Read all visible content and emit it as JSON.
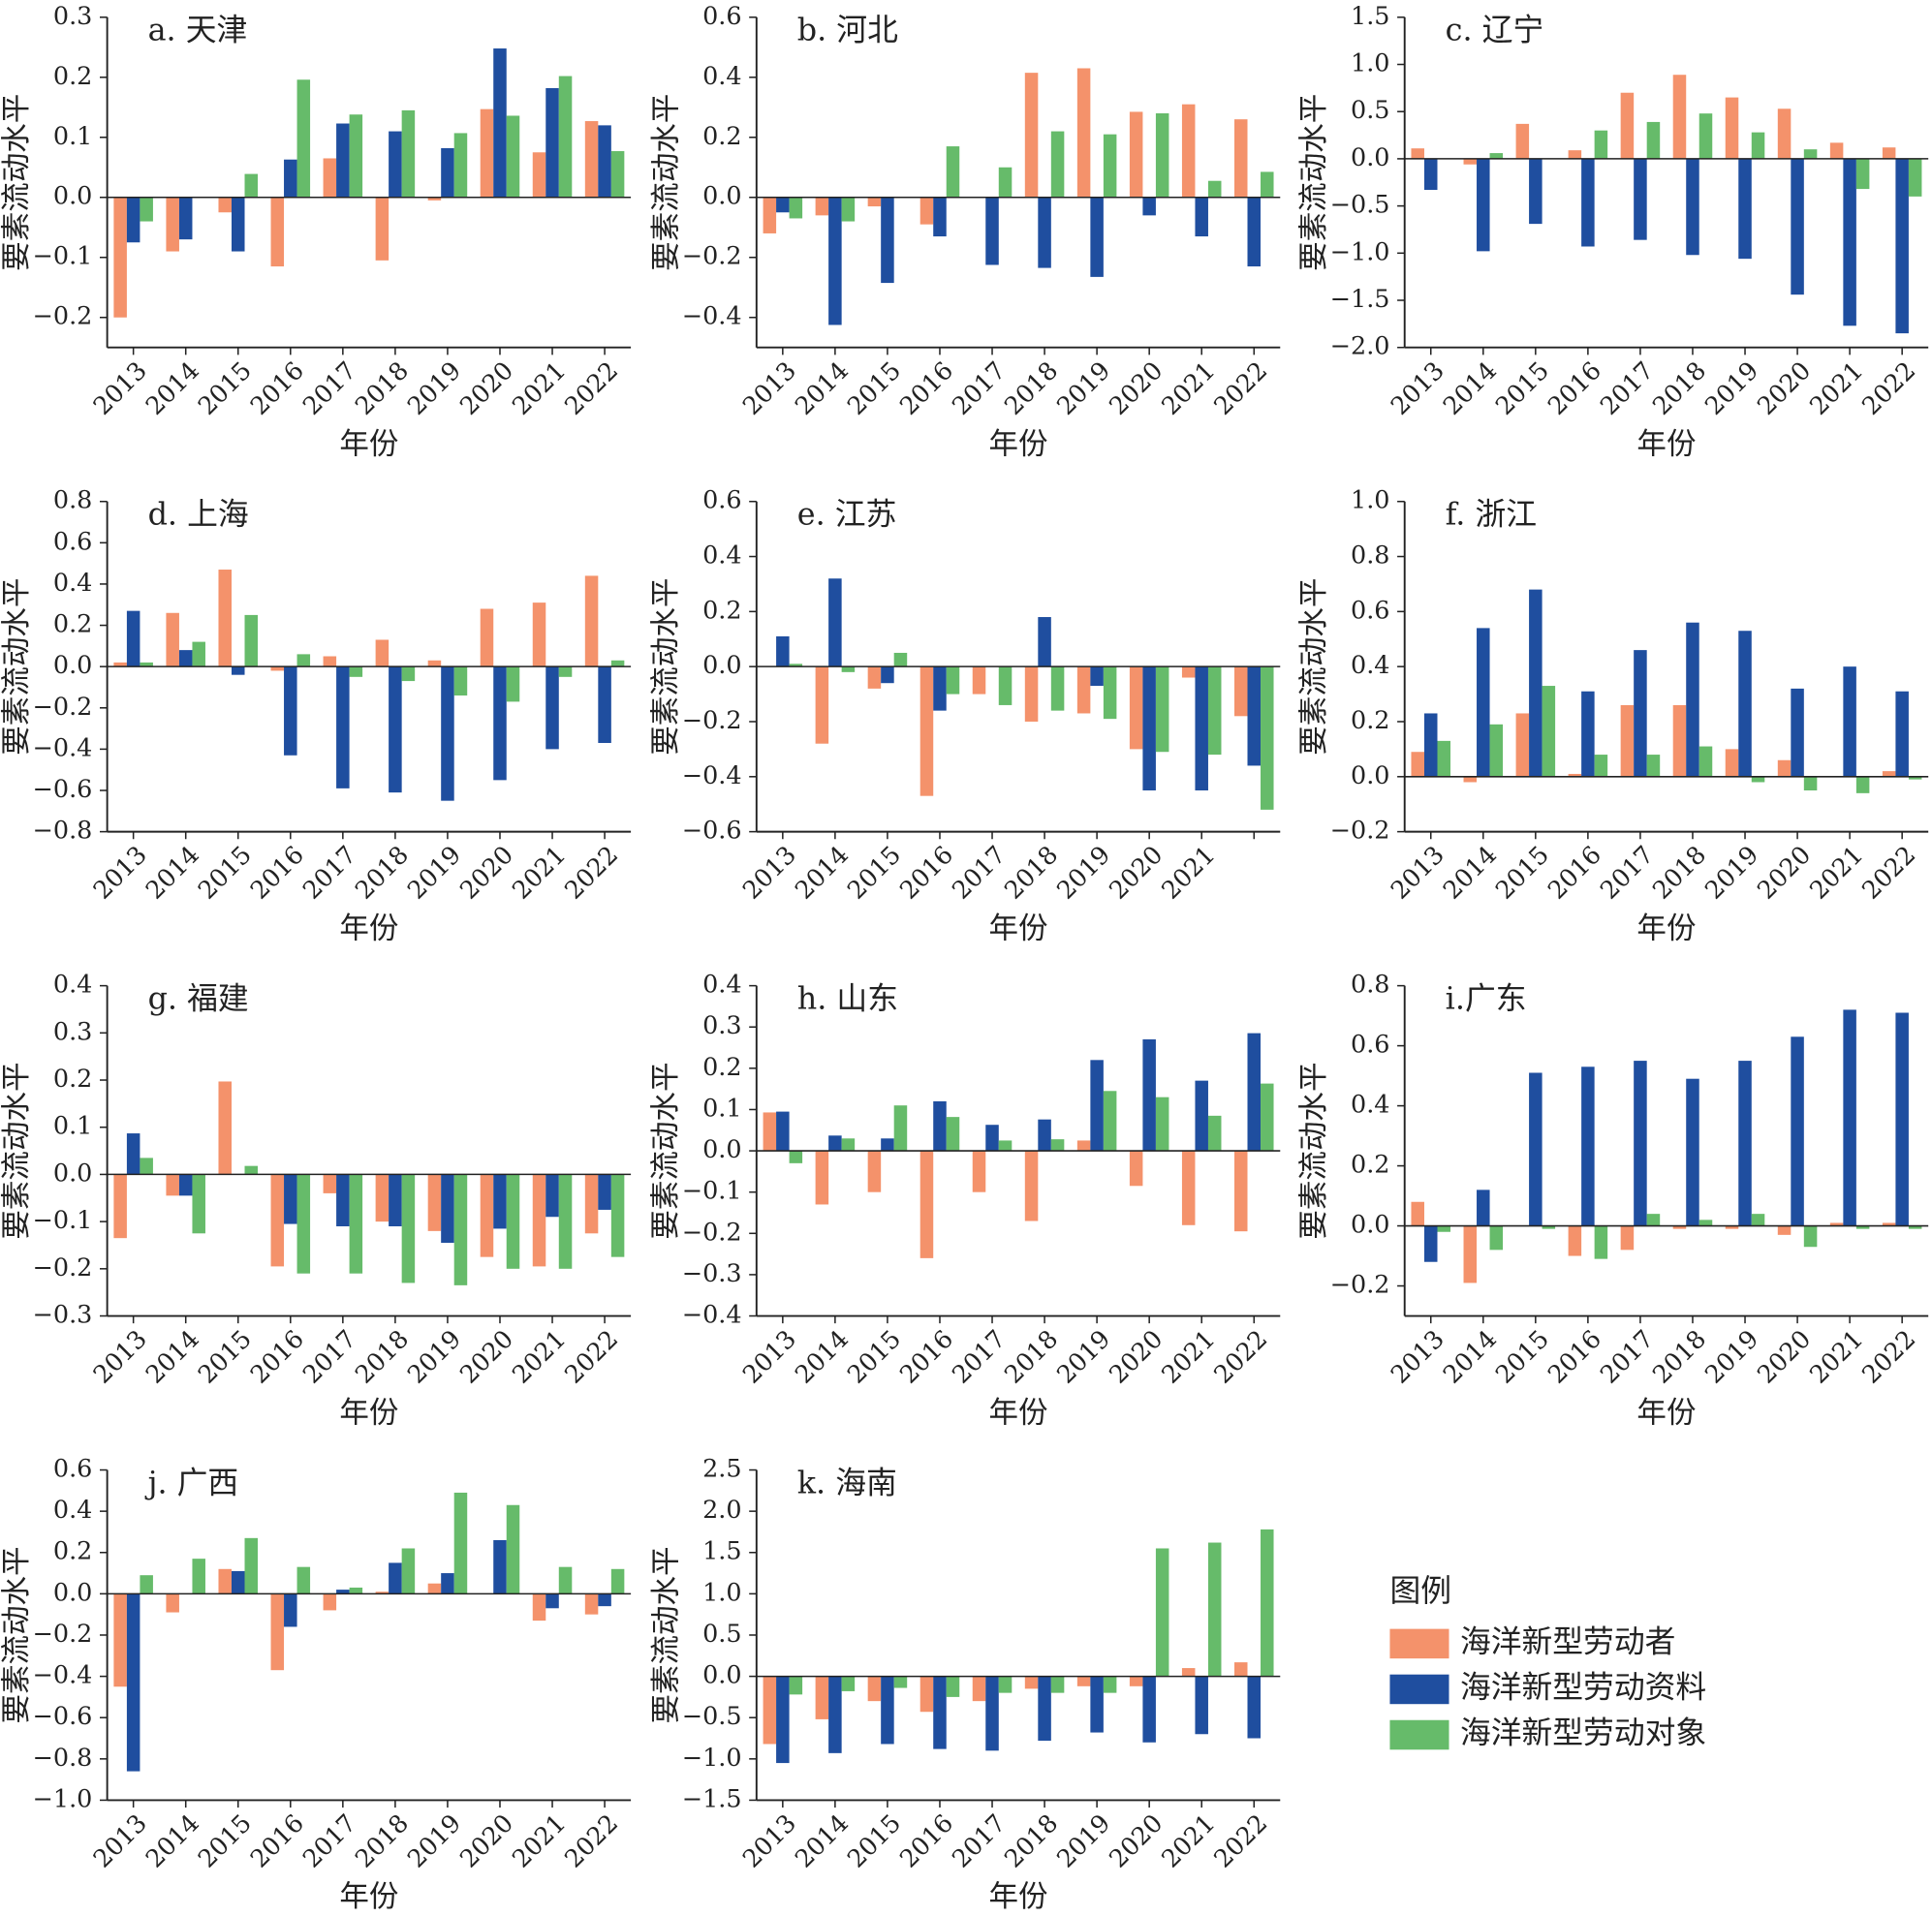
{
  "legend": {
    "title": "图例"
  },
  "chart_data": [
    {
      "type": "bar",
      "title": "a. 天津",
      "xlabel": "年份",
      "ylabel": "要素流动水平",
      "categories": [
        "2013",
        "2014",
        "2015",
        "2016",
        "2017",
        "2018",
        "2019",
        "2020",
        "2021",
        "2022"
      ],
      "series": [
        {
          "name": "海洋新型劳动者",
          "color": "#f4926b",
          "values": [
            -0.2,
            -0.09,
            -0.025,
            -0.115,
            0.065,
            -0.105,
            -0.005,
            0.147,
            0.075,
            0.127
          ]
        },
        {
          "name": "海洋新型劳动资料",
          "color": "#1f4e9f",
          "values": [
            -0.075,
            -0.07,
            -0.09,
            0.063,
            0.123,
            0.11,
            0.082,
            0.248,
            0.182,
            0.12
          ]
        },
        {
          "name": "海洋新型劳动对象",
          "color": "#66bb6a",
          "values": [
            -0.04,
            0,
            0.039,
            0.196,
            0.138,
            0.145,
            0.107,
            0.136,
            0.202,
            0.077
          ]
        }
      ],
      "ylim": [
        -0.25,
        0.3
      ],
      "yticks": [
        {
          "value": -0.2,
          "label": "−0.2"
        },
        {
          "value": -0.1,
          "label": "−0.1"
        },
        {
          "value": 0,
          "label": "0.0"
        },
        0.1,
        0.2,
        0.3
      ]
    },
    {
      "type": "bar",
      "title": "b. 河北",
      "xlabel": "年份",
      "ylabel": "要素流动水平",
      "categories": [
        "2013",
        "2014",
        "2015",
        "2016",
        "2017",
        "2018",
        "2019",
        "2020",
        "2021",
        "2022"
      ],
      "series": [
        {
          "name": "海洋新型劳动者",
          "color": "#f4926b",
          "values": [
            -0.12,
            -0.06,
            -0.03,
            -0.09,
            0,
            0.415,
            0.43,
            0.285,
            0.31,
            0.26
          ]
        },
        {
          "name": "海洋新型劳动资料",
          "color": "#1f4e9f",
          "values": [
            -0.05,
            -0.425,
            -0.285,
            -0.13,
            -0.225,
            -0.235,
            -0.265,
            -0.06,
            -0.13,
            -0.23
          ]
        },
        {
          "name": "海洋新型劳动对象",
          "color": "#66bb6a",
          "values": [
            -0.07,
            -0.08,
            0,
            0.17,
            0.1,
            0.22,
            0.21,
            0.28,
            0.055,
            0.085
          ]
        }
      ],
      "ylim": [
        -0.5,
        0.6
      ],
      "yticks": [
        {
          "value": -0.4,
          "label": "−0.4"
        },
        {
          "value": -0.2,
          "label": "−0.2"
        },
        {
          "value": 0,
          "label": "0.0"
        },
        0.2,
        0.4,
        0.6
      ]
    },
    {
      "type": "bar",
      "title": "c. 辽宁",
      "xlabel": "年份",
      "ylabel": "要素流动水平",
      "categories": [
        "2013",
        "2014",
        "2015",
        "2016",
        "2017",
        "2018",
        "2019",
        "2020",
        "2021",
        "2022"
      ],
      "series": [
        {
          "name": "海洋新型劳动者",
          "color": "#f4926b",
          "values": [
            0.11,
            -0.06,
            0.37,
            0.09,
            0.7,
            0.89,
            0.65,
            0.53,
            0.17,
            0.12
          ]
        },
        {
          "name": "海洋新型劳动资料",
          "color": "#1f4e9f",
          "values": [
            -0.33,
            -0.98,
            -0.69,
            -0.93,
            -0.86,
            -1.02,
            -1.06,
            -1.44,
            -1.77,
            -1.85
          ]
        },
        {
          "name": "海洋新型劳动对象",
          "color": "#66bb6a",
          "values": [
            0,
            0.06,
            0,
            0.3,
            0.39,
            0.48,
            0.28,
            0.1,
            -0.32,
            -0.4
          ]
        }
      ],
      "ylim": [
        -2.0,
        1.5
      ],
      "yticks": [
        {
          "value": -2,
          "label": "−2.0"
        },
        {
          "value": -1.5,
          "label": "−1.5"
        },
        {
          "value": -1,
          "label": "−1.0"
        },
        {
          "value": -0.5,
          "label": "−0.5"
        },
        {
          "value": 0,
          "label": "0.0"
        },
        0.5,
        {
          "value": 1,
          "label": "1.0"
        },
        1.5
      ]
    },
    {
      "type": "bar",
      "title": "d. 上海",
      "xlabel": "年份",
      "ylabel": "要素流动水平",
      "categories": [
        "2013",
        "2014",
        "2015",
        "2016",
        "2017",
        "2018",
        "2019",
        "2020",
        "2021",
        "2022"
      ],
      "series": [
        {
          "name": "海洋新型劳动者",
          "color": "#f4926b",
          "values": [
            0.02,
            0.26,
            0.47,
            -0.02,
            0.05,
            0.13,
            0.03,
            0.28,
            0.31,
            0.44
          ]
        },
        {
          "name": "海洋新型劳动资料",
          "color": "#1f4e9f",
          "values": [
            0.27,
            0.08,
            -0.04,
            -0.43,
            -0.59,
            -0.61,
            -0.65,
            -0.55,
            -0.4,
            -0.37
          ]
        },
        {
          "name": "海洋新型劳动对象",
          "color": "#66bb6a",
          "values": [
            0.02,
            0.12,
            0.25,
            0.06,
            -0.05,
            -0.07,
            -0.14,
            -0.17,
            -0.05,
            0.03
          ]
        }
      ],
      "ylim": [
        -0.8,
        0.8
      ],
      "yticks": [
        {
          "value": -0.8,
          "label": "−0.8"
        },
        {
          "value": -0.6,
          "label": "−0.6"
        },
        {
          "value": -0.4,
          "label": "−0.4"
        },
        {
          "value": -0.2,
          "label": "−0.2"
        },
        {
          "value": 0,
          "label": "0.0"
        },
        0.2,
        0.4,
        0.6,
        0.8
      ]
    },
    {
      "type": "bar",
      "title": "e. 江苏",
      "xlabel": "年份",
      "ylabel": "要素流动水平",
      "categories": [
        "2013",
        "2014",
        "2015",
        "2016",
        "2017",
        "2018",
        "2019",
        "2020",
        "2021",
        null
      ],
      "series": [
        {
          "name": "海洋新型劳动者",
          "color": "#f4926b",
          "values": [
            0,
            -0.28,
            -0.08,
            -0.47,
            -0.1,
            -0.2,
            -0.17,
            -0.3,
            -0.04,
            -0.18
          ]
        },
        {
          "name": "海洋新型劳动资料",
          "color": "#1f4e9f",
          "values": [
            0.11,
            0.32,
            -0.06,
            -0.16,
            0,
            0.18,
            -0.07,
            -0.45,
            -0.45,
            -0.36
          ]
        },
        {
          "name": "海洋新型劳动对象",
          "color": "#66bb6a",
          "values": [
            0.01,
            -0.02,
            0.05,
            -0.1,
            -0.14,
            -0.16,
            -0.19,
            -0.31,
            -0.32,
            -0.52
          ]
        }
      ],
      "ylim": [
        -0.6,
        0.6
      ],
      "yticks": [
        {
          "value": -0.6,
          "label": "−0.6"
        },
        {
          "value": -0.4,
          "label": "−0.4"
        },
        {
          "value": -0.2,
          "label": "−0.2"
        },
        {
          "value": 0,
          "label": "0.0"
        },
        0.2,
        0.4,
        0.6
      ]
    },
    {
      "type": "bar",
      "title": "f. 浙江",
      "xlabel": "年份",
      "ylabel": "要素流动水平",
      "categories": [
        "2013",
        "2014",
        "2015",
        "2016",
        "2017",
        "2018",
        "2019",
        "2020",
        "2021",
        "2022"
      ],
      "series": [
        {
          "name": "海洋新型劳动者",
          "color": "#f4926b",
          "values": [
            0.09,
            -0.02,
            0.23,
            0.01,
            0.26,
            0.26,
            0.1,
            0.06,
            0,
            0.02
          ]
        },
        {
          "name": "海洋新型劳动资料",
          "color": "#1f4e9f",
          "values": [
            0.23,
            0.54,
            0.68,
            0.31,
            0.46,
            0.56,
            0.53,
            0.32,
            0.4,
            0.31
          ]
        },
        {
          "name": "海洋新型劳动对象",
          "color": "#66bb6a",
          "values": [
            0.13,
            0.19,
            0.33,
            0.08,
            0.08,
            0.11,
            -0.02,
            -0.05,
            -0.06,
            -0.01
          ]
        }
      ],
      "ylim": [
        -0.2,
        1.0
      ],
      "yticks": [
        {
          "value": -0.2,
          "label": "−0.2"
        },
        {
          "value": 0,
          "label": "0.0"
        },
        0.2,
        0.4,
        0.6,
        0.8,
        {
          "value": 1,
          "label": "1.0"
        }
      ]
    },
    {
      "type": "bar",
      "title": "g. 福建",
      "xlabel": "年份",
      "ylabel": "要素流动水平",
      "categories": [
        "2013",
        "2014",
        "2015",
        "2016",
        "2017",
        "2018",
        "2019",
        "2020",
        "2021",
        "2022"
      ],
      "series": [
        {
          "name": "海洋新型劳动者",
          "color": "#f4926b",
          "values": [
            -0.135,
            -0.045,
            0.197,
            -0.195,
            -0.04,
            -0.1,
            -0.12,
            -0.175,
            -0.195,
            -0.125
          ]
        },
        {
          "name": "海洋新型劳动资料",
          "color": "#1f4e9f",
          "values": [
            0.087,
            -0.045,
            0,
            -0.105,
            -0.11,
            -0.11,
            -0.145,
            -0.115,
            -0.09,
            -0.075
          ]
        },
        {
          "name": "海洋新型劳动对象",
          "color": "#66bb6a",
          "values": [
            0.035,
            -0.125,
            0.018,
            -0.21,
            -0.21,
            -0.23,
            -0.235,
            -0.2,
            -0.2,
            -0.175
          ]
        }
      ],
      "ylim": [
        -0.3,
        0.4
      ],
      "yticks": [
        {
          "value": -0.3,
          "label": "−0.3"
        },
        {
          "value": -0.2,
          "label": "−0.2"
        },
        {
          "value": -0.1,
          "label": "−0.1"
        },
        {
          "value": 0,
          "label": "0.0"
        },
        0.1,
        0.2,
        0.3,
        0.4
      ]
    },
    {
      "type": "bar",
      "title": "h. 山东",
      "xlabel": "年份",
      "ylabel": "要素流动水平",
      "categories": [
        "2013",
        "2014",
        "2015",
        "2016",
        "2017",
        "2018",
        "2019",
        "2020",
        "2021",
        "2022"
      ],
      "series": [
        {
          "name": "海洋新型劳动者",
          "color": "#f4926b",
          "values": [
            0.093,
            -0.13,
            -0.1,
            -0.26,
            -0.1,
            -0.17,
            0.025,
            -0.085,
            -0.18,
            -0.195
          ]
        },
        {
          "name": "海洋新型劳动资料",
          "color": "#1f4e9f",
          "values": [
            0.095,
            0.037,
            0.03,
            0.12,
            0.063,
            0.076,
            0.22,
            0.27,
            0.17,
            0.285
          ]
        },
        {
          "name": "海洋新型劳动对象",
          "color": "#66bb6a",
          "values": [
            -0.03,
            0.03,
            0.11,
            0.082,
            0.025,
            0.028,
            0.145,
            0.13,
            0.085,
            0.163
          ]
        }
      ],
      "ylim": [
        -0.4,
        0.4
      ],
      "yticks": [
        {
          "value": -0.4,
          "label": "−0.4"
        },
        {
          "value": -0.3,
          "label": "−0.3"
        },
        {
          "value": -0.2,
          "label": "−0.2"
        },
        {
          "value": -0.1,
          "label": "−0.1"
        },
        {
          "value": 0,
          "label": "0.0"
        },
        0.1,
        0.2,
        0.3,
        0.4
      ]
    },
    {
      "type": "bar",
      "title": "i.广东",
      "xlabel": "年份",
      "ylabel": "要素流动水平",
      "categories": [
        "2013",
        "2014",
        "2015",
        "2016",
        "2017",
        "2018",
        "2019",
        "2020",
        "2021",
        "2022"
      ],
      "series": [
        {
          "name": "海洋新型劳动者",
          "color": "#f4926b",
          "values": [
            0.08,
            -0.19,
            0,
            -0.1,
            -0.08,
            -0.01,
            -0.01,
            -0.03,
            0.01,
            0.01
          ]
        },
        {
          "name": "海洋新型劳动资料",
          "color": "#1f4e9f",
          "values": [
            -0.12,
            0.12,
            0.51,
            0.53,
            0.55,
            0.49,
            0.55,
            0.63,
            0.72,
            0.71
          ]
        },
        {
          "name": "海洋新型劳动对象",
          "color": "#66bb6a",
          "values": [
            -0.02,
            -0.08,
            -0.01,
            -0.11,
            0.04,
            0.02,
            0.04,
            -0.07,
            -0.01,
            -0.01
          ]
        }
      ],
      "ylim": [
        -0.3,
        0.8
      ],
      "yticks": [
        {
          "value": -0.2,
          "label": "−0.2"
        },
        {
          "value": 0,
          "label": "0.0"
        },
        0.2,
        0.4,
        0.6,
        0.8
      ]
    },
    {
      "type": "bar",
      "title": "j. 广西",
      "xlabel": "年份",
      "ylabel": "要素流动水平",
      "categories": [
        "2013",
        "2014",
        "2015",
        "2016",
        "2017",
        "2018",
        "2019",
        "2020",
        "2021",
        "2022"
      ],
      "series": [
        {
          "name": "海洋新型劳动者",
          "color": "#f4926b",
          "values": [
            -0.45,
            -0.09,
            0.12,
            -0.37,
            -0.08,
            0.01,
            0.05,
            0,
            -0.13,
            -0.1
          ]
        },
        {
          "name": "海洋新型劳动资料",
          "color": "#1f4e9f",
          "values": [
            -0.86,
            0,
            0.11,
            -0.16,
            0.02,
            0.15,
            0.1,
            0.26,
            -0.07,
            -0.06
          ]
        },
        {
          "name": "海洋新型劳动对象",
          "color": "#66bb6a",
          "values": [
            0.09,
            0.17,
            0.27,
            0.13,
            0.03,
            0.22,
            0.49,
            0.43,
            0.13,
            0.12
          ]
        }
      ],
      "ylim": [
        -1.0,
        0.6
      ],
      "yticks": [
        {
          "value": -1,
          "label": "−1.0"
        },
        {
          "value": -0.8,
          "label": "−0.8"
        },
        {
          "value": -0.6,
          "label": "−0.6"
        },
        {
          "value": -0.4,
          "label": "−0.4"
        },
        {
          "value": -0.2,
          "label": "−0.2"
        },
        {
          "value": 0,
          "label": "0.0"
        },
        0.2,
        0.4,
        0.6
      ]
    },
    {
      "type": "bar",
      "title": "k. 海南",
      "xlabel": "年份",
      "ylabel": "要素流动水平",
      "categories": [
        "2013",
        "2014",
        "2015",
        "2016",
        "2017",
        "2018",
        "2019",
        "2020",
        "2021",
        "2022"
      ],
      "series": [
        {
          "name": "海洋新型劳动者",
          "color": "#f4926b",
          "values": [
            -0.82,
            -0.52,
            -0.3,
            -0.43,
            -0.3,
            -0.15,
            -0.12,
            -0.12,
            0.1,
            0.17
          ]
        },
        {
          "name": "海洋新型劳动资料",
          "color": "#1f4e9f",
          "values": [
            -1.05,
            -0.93,
            -0.82,
            -0.88,
            -0.9,
            -0.78,
            -0.68,
            -0.8,
            -0.7,
            -0.75
          ]
        },
        {
          "name": "海洋新型劳动对象",
          "color": "#66bb6a",
          "values": [
            -0.22,
            -0.18,
            -0.14,
            -0.25,
            -0.2,
            -0.2,
            -0.2,
            1.55,
            1.62,
            1.78
          ]
        }
      ],
      "ylim": [
        -1.5,
        2.5
      ],
      "yticks": [
        {
          "value": -1.5,
          "label": "−1.5"
        },
        {
          "value": -1,
          "label": "−1.0"
        },
        {
          "value": -0.5,
          "label": "−0.5"
        },
        {
          "value": 0,
          "label": "0.0"
        },
        0.5,
        {
          "value": 1,
          "label": "1.0"
        },
        1.5,
        {
          "value": 2,
          "label": "2.0"
        },
        2.5
      ]
    }
  ]
}
